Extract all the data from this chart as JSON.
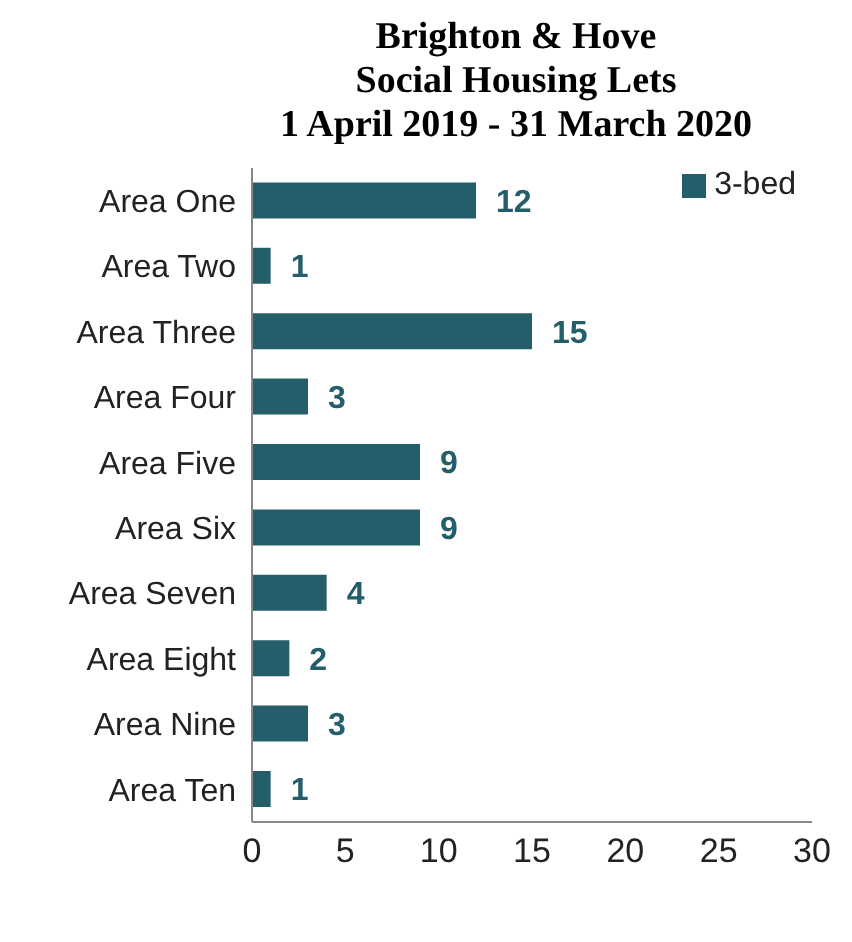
{
  "chart_data": {
    "type": "bar",
    "orientation": "horizontal",
    "title": "Brighton & Hove\nSocial Housing Lets",
    "subtitle": "1 April 2019 - 31 March 2020",
    "categories": [
      "Area One",
      "Area Two",
      "Area Three",
      "Area Four",
      "Area Five",
      "Area Six",
      "Area Seven",
      "Area Eight",
      "Area Nine",
      "Area Ten"
    ],
    "series": [
      {
        "name": "3-bed",
        "color": "#255e6b",
        "values": [
          12,
          1,
          15,
          3,
          9,
          9,
          4,
          2,
          3,
          1
        ]
      }
    ],
    "xlim": [
      0,
      30
    ],
    "xticks": [
      0,
      5,
      10,
      15,
      20,
      25,
      30
    ],
    "data_labels": true,
    "legend": "top right",
    "grid": false
  }
}
